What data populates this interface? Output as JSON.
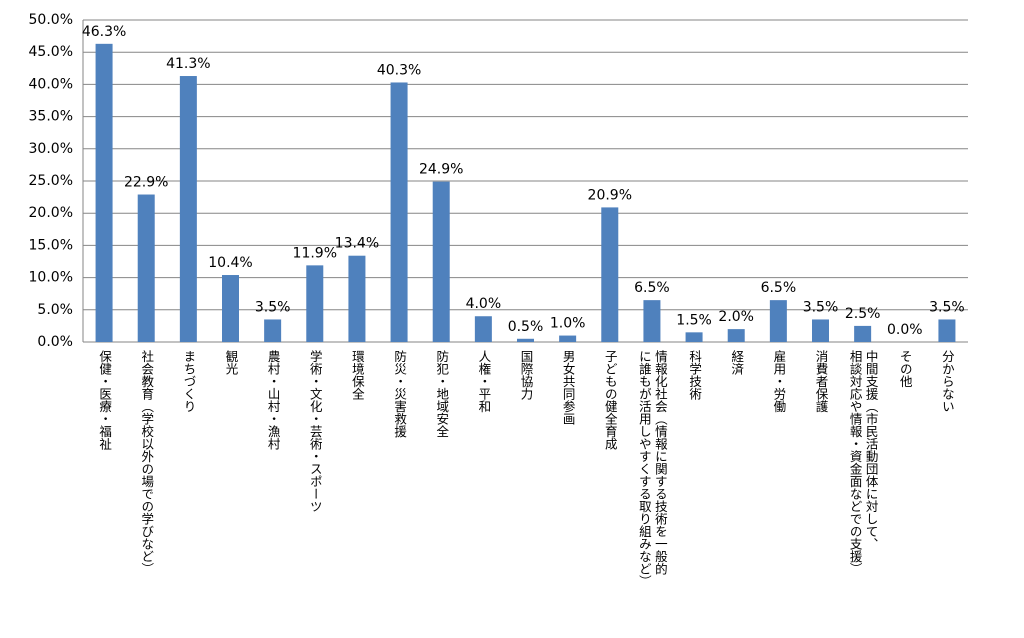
{
  "chart_data": {
    "type": "bar",
    "categories": [
      "保健・医療・福祉",
      "社会教育（学校以外の場での学びなど）",
      "まちづくり",
      "観光",
      "農村・山村・漁村",
      "学術・文化・芸術・スポーツ",
      "環境保全",
      "防災・災害救援",
      "防犯・地域安全",
      "人権・平和",
      "国際協力",
      "男女共同参画",
      "子どもの健全育成",
      "情報化社会（情報に関する技術を一般的\nに誰もが活用しやすくする取り組みなど）",
      "科学技術",
      "経済",
      "雇用・労働",
      "消費者保護",
      "中間支援（市民活動団体に対して、\n相談対応や情報・資金面などでの支援）",
      "その他",
      "分からない"
    ],
    "values": [
      46.3,
      22.9,
      41.3,
      10.4,
      3.5,
      11.9,
      13.4,
      40.3,
      24.9,
      4.0,
      0.5,
      1.0,
      20.9,
      6.5,
      1.5,
      2.0,
      6.5,
      3.5,
      2.5,
      0.0,
      3.5
    ],
    "value_labels": [
      "46.3%",
      "22.9%",
      "41.3%",
      "10.4%",
      "3.5%",
      "11.9%",
      "13.4%",
      "40.3%",
      "24.9%",
      "4.0%",
      "0.5%",
      "1.0%",
      "20.9%",
      "6.5%",
      "1.5%",
      "2.0%",
      "6.5%",
      "3.5%",
      "2.5%",
      "0.0%",
      "3.5%"
    ],
    "color": "#4f81bd",
    "ylim": [
      0,
      50
    ],
    "yticks": [
      {
        "value": 0,
        "label": "0.0%"
      },
      {
        "value": 5,
        "label": "5.0%"
      },
      {
        "value": 10,
        "label": "10.0%"
      },
      {
        "value": 15,
        "label": "15.0%"
      },
      {
        "value": 20,
        "label": "20.0%"
      },
      {
        "value": 25,
        "label": "25.0%"
      },
      {
        "value": 30,
        "label": "30.0%"
      },
      {
        "value": 35,
        "label": "35.0%"
      },
      {
        "value": 40,
        "label": "40.0%"
      },
      {
        "value": 45,
        "label": "45.0%"
      },
      {
        "value": 50,
        "label": "50.0%"
      }
    ],
    "grid": true
  }
}
